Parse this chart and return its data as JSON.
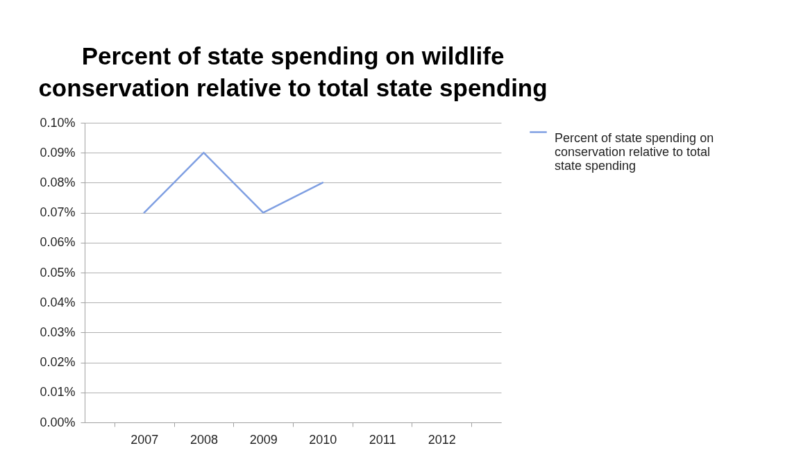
{
  "chart_data": {
    "type": "line",
    "title": "Percent of state spending on wildlife conservation relative to total state spending",
    "categories": [
      "2007",
      "2008",
      "2009",
      "2010",
      "2011",
      "2012"
    ],
    "series": [
      {
        "name": "Percent of state spending on conservation relative to total state spending",
        "color": "#7f9fe2",
        "values": [
          0.07,
          0.09,
          0.07,
          0.08,
          null,
          null
        ]
      }
    ],
    "ylim": [
      0,
      0.1
    ],
    "yticks": [
      {
        "value": 0,
        "label": "0.00%"
      },
      {
        "value": 0.01,
        "label": "0.01%"
      },
      {
        "value": 0.02,
        "label": "0.02%"
      },
      {
        "value": 0.03,
        "label": "0.03%"
      },
      {
        "value": 0.04,
        "label": "0.04%"
      },
      {
        "value": 0.05,
        "label": "0.05%"
      },
      {
        "value": 0.06,
        "label": "0.06%"
      },
      {
        "value": 0.07,
        "label": "0.07%"
      },
      {
        "value": 0.08,
        "label": "0.08%"
      },
      {
        "value": 0.09,
        "label": "0.09%"
      },
      {
        "value": 0.1,
        "label": "0.10%"
      }
    ],
    "grid": "y",
    "legend": "right",
    "marker": "none",
    "line_style": "solid"
  }
}
